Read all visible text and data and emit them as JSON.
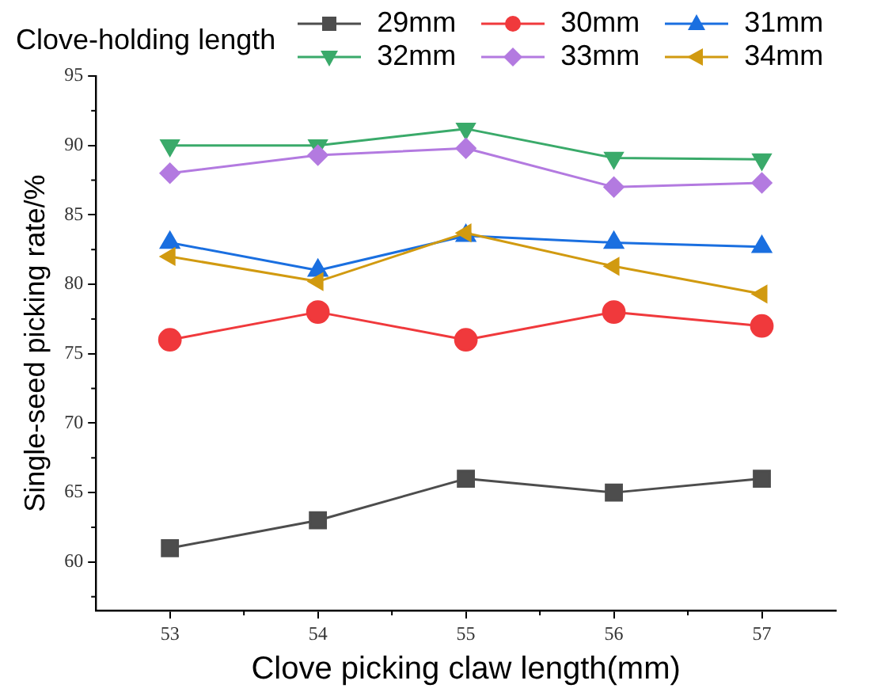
{
  "chart_data": {
    "type": "line",
    "xlabel": "Clove picking claw length(mm)",
    "ylabel": "Single-seed picking rate/%",
    "legend_title": "Clove-holding length",
    "legend": "top",
    "x": [
      53,
      54,
      55,
      56,
      57
    ],
    "xlim": [
      52.5,
      57.5
    ],
    "xticks": [
      53,
      54,
      55,
      56,
      57
    ],
    "ylim": [
      56.5,
      95
    ],
    "yticks": [
      60,
      65,
      70,
      75,
      80,
      85,
      90,
      95
    ],
    "series": [
      {
        "name": "29mm",
        "color": "#4d4d4d",
        "marker": "square",
        "values": [
          61,
          63,
          66,
          65,
          66
        ]
      },
      {
        "name": "30mm",
        "color": "#f0393c",
        "marker": "circle",
        "values": [
          76,
          78,
          76,
          78,
          77
        ]
      },
      {
        "name": "31mm",
        "color": "#1a6fe0",
        "marker": "triangle",
        "values": [
          83,
          81,
          83.5,
          83,
          82.7
        ]
      },
      {
        "name": "32mm",
        "color": "#3aaa6a",
        "marker": "triangle-down",
        "values": [
          90,
          90,
          91.2,
          89.1,
          89
        ]
      },
      {
        "name": "33mm",
        "color": "#b37ae0",
        "marker": "diamond",
        "values": [
          88,
          89.3,
          89.8,
          87,
          87.3
        ]
      },
      {
        "name": "34mm",
        "color": "#d19a10",
        "marker": "triangle-left",
        "values": [
          82,
          80.2,
          83.7,
          81.3,
          79.3
        ]
      }
    ]
  }
}
